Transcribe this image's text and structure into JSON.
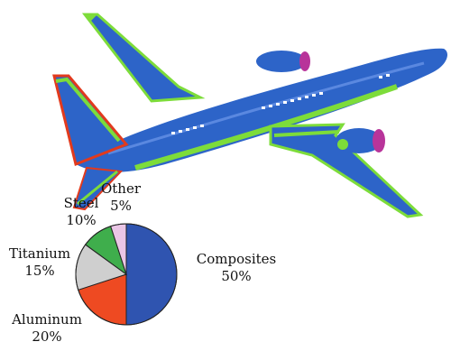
{
  "chart_data": {
    "type": "pie",
    "categories": [
      "Composites",
      "Aluminum",
      "Titanium",
      "Steel",
      "Other"
    ],
    "values": [
      50,
      20,
      15,
      10,
      5
    ],
    "value_labels": [
      "50%",
      "20%",
      "15%",
      "10%",
      "5%"
    ],
    "colors": [
      "#2f54b0",
      "#ee4a22",
      "#cfcfcf",
      "#3fae4c",
      "#eac6e6"
    ],
    "title": "",
    "start_angle_deg": 0,
    "direction": "clockwise"
  },
  "illustration": {
    "subject": "airplane",
    "colors": {
      "body": "#2d64c8",
      "composite_trim": "#7ddc3a",
      "alloy_trim": "#e23a1d",
      "engine_inlet": "#b8349a"
    }
  }
}
